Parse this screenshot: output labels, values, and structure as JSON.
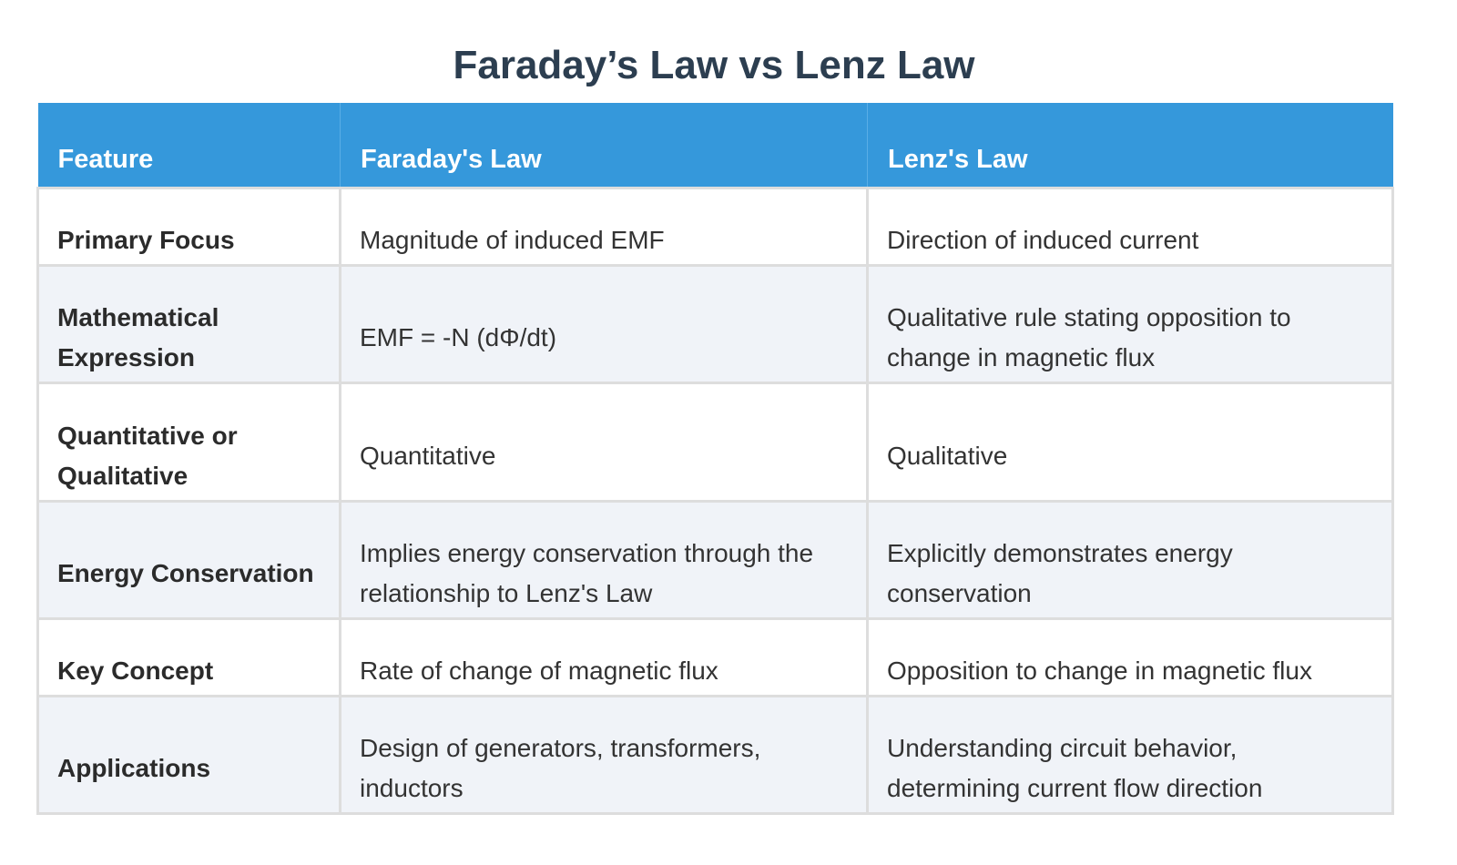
{
  "title": "Faraday’s Law vs Lenz Law",
  "table": {
    "headers": [
      "Feature",
      "Faraday's Law",
      "Lenz's Law"
    ],
    "rows": [
      [
        "Primary Focus",
        "Magnitude of induced EMF",
        "Direction of induced current"
      ],
      [
        "Mathematical Expression",
        "EMF = -N (dΦ/dt)",
        "Qualitative rule stating opposition to change in magnetic flux"
      ],
      [
        "Quantitative or Qualitative",
        "Quantitative",
        "Qualitative"
      ],
      [
        "Energy Conservation",
        "Implies energy conservation through the relationship to Lenz's Law",
        "Explicitly demonstrates energy conservation"
      ],
      [
        "Key Concept",
        "Rate of change of magnetic flux",
        "Opposition to change in magnetic flux"
      ],
      [
        "Applications",
        "Design of generators, transformers, inductors",
        "Understanding circuit behavior, determining current flow direction"
      ]
    ]
  },
  "colors": {
    "header_bg": "#3598db",
    "title": "#2c3e50",
    "alt_row": "#f0f3f8",
    "border": "#dddddd"
  }
}
